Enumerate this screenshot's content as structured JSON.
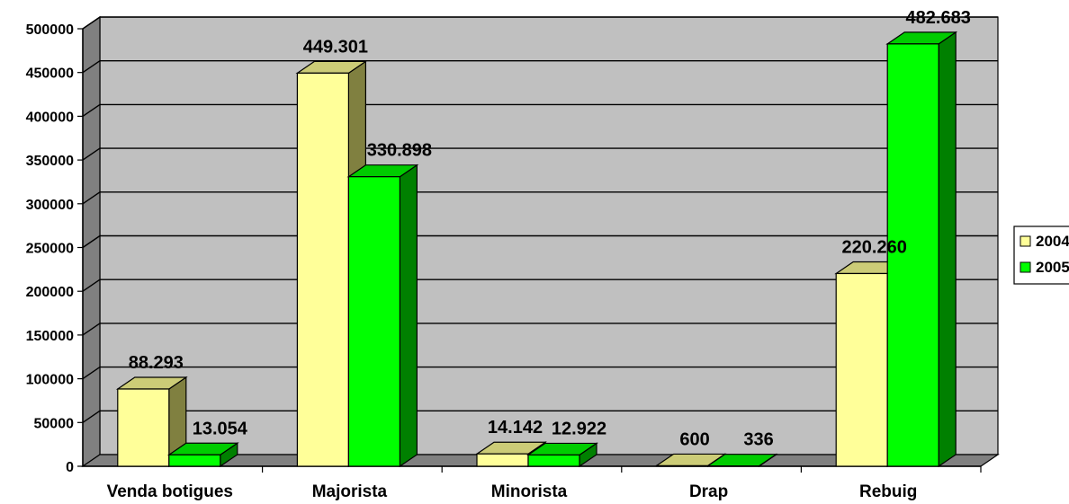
{
  "chart_data": {
    "type": "bar",
    "categories": [
      "Venda botigues",
      "Majorista",
      "Minorista",
      "Drap",
      "Rebuig"
    ],
    "series": [
      {
        "name": "2004",
        "values": [
          88293,
          449301,
          14142,
          600,
          220260
        ],
        "labels": [
          "88.293",
          "449.301",
          "14.142",
          "600",
          "220.260"
        ],
        "color": "#FFFF99"
      },
      {
        "name": "2005",
        "values": [
          13054,
          330898,
          12922,
          336,
          482683
        ],
        "labels": [
          "13.054",
          "330.898",
          "12.922",
          "336",
          "482.683"
        ],
        "color": "#00FF00"
      }
    ],
    "title": "",
    "xlabel": "",
    "ylabel": "",
    "ylim": [
      0,
      500000
    ],
    "yticks": [
      "0",
      "50000",
      "100000",
      "150000",
      "200000",
      "250000",
      "300000",
      "350000",
      "400000",
      "450000",
      "500000"
    ],
    "grid": true,
    "three_d": true,
    "legend": "right",
    "colors": {
      "wall": "#C0C0C0",
      "floor": "#808080"
    }
  }
}
